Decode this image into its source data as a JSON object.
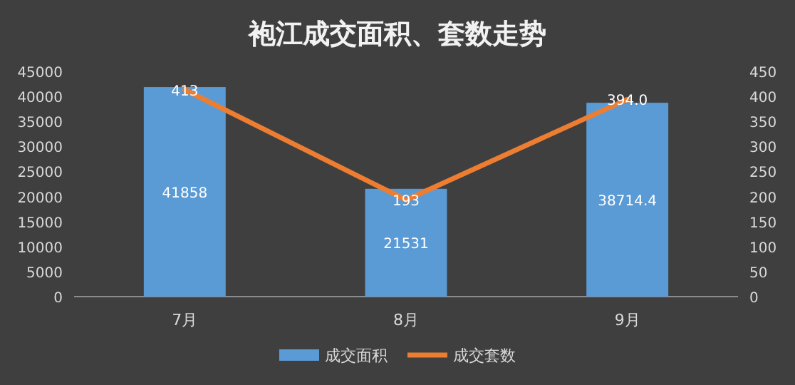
{
  "chart_data": {
    "type": "bar",
    "title": "袍江成交面积、套数走势",
    "categories": [
      "7月",
      "8月",
      "9月"
    ],
    "series": [
      {
        "name": "成交面积",
        "color": "#5b9bd5",
        "values": [
          41858,
          21531,
          38714.4
        ],
        "value_labels": [
          "41858",
          "21531",
          "38714.4"
        ]
      },
      {
        "name": "成交套数",
        "type": "line",
        "axis": "y2",
        "color": "#ed7d31",
        "values": [
          413,
          193,
          394.0
        ],
        "value_labels": [
          "413",
          "193",
          "394.0"
        ]
      }
    ],
    "ylim": [
      0,
      45000
    ],
    "yticks": [
      0,
      5000,
      10000,
      15000,
      20000,
      25000,
      30000,
      35000,
      40000,
      45000
    ],
    "y2lim": [
      0,
      450
    ],
    "y2ticks": [
      0,
      50,
      100,
      150,
      200,
      250,
      300,
      350,
      400,
      450
    ],
    "legend": "bottom",
    "marker": "none",
    "grid": false
  }
}
